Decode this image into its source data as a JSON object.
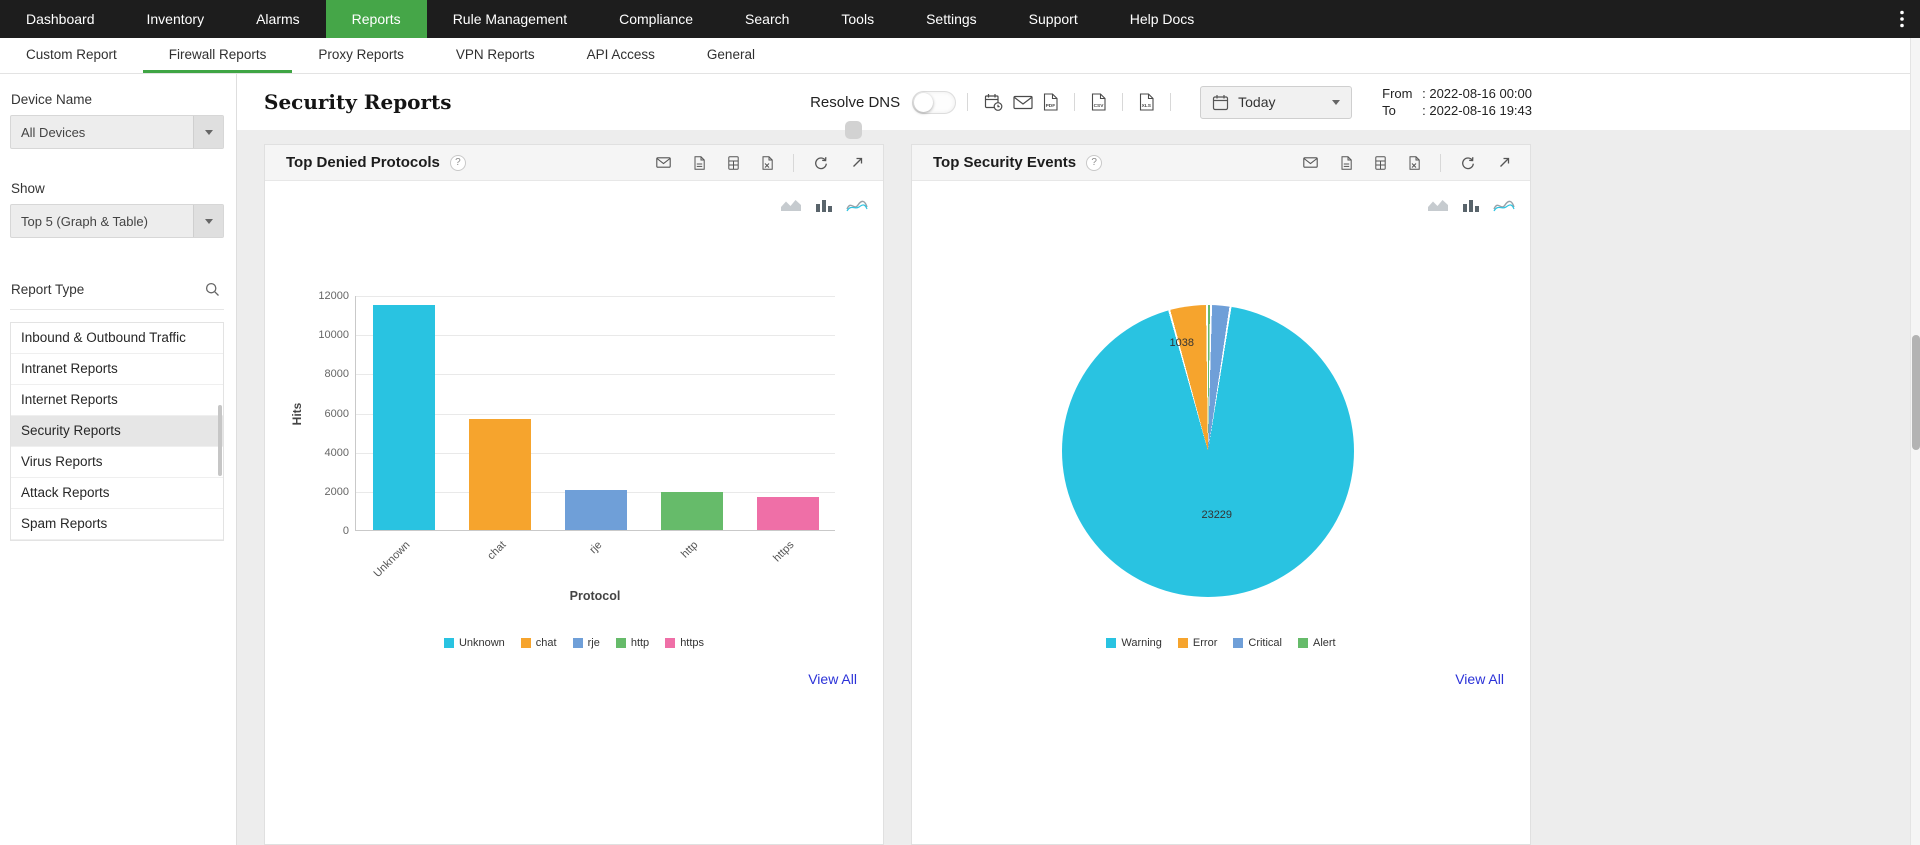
{
  "topnav": {
    "items": [
      "Dashboard",
      "Inventory",
      "Alarms",
      "Reports",
      "Rule Management",
      "Compliance",
      "Search",
      "Tools",
      "Settings",
      "Support",
      "Help Docs"
    ],
    "active_index": 3
  },
  "subnav": {
    "items": [
      "Custom Report",
      "Firewall Reports",
      "Proxy Reports",
      "VPN Reports",
      "API Access",
      "General"
    ],
    "active_index": 1
  },
  "sidebar": {
    "device_label": "Device Name",
    "device_value": "All Devices",
    "show_label": "Show",
    "show_value": "Top 5 (Graph & Table)",
    "report_type_label": "Report Type",
    "report_types": [
      "Inbound & Outbound Traffic",
      "Intranet Reports",
      "Internet Reports",
      "Security Reports",
      "Virus Reports",
      "Attack Reports",
      "Spam Reports"
    ],
    "selected_index": 3
  },
  "header": {
    "title": "Security Reports",
    "resolve_dns": "Resolve DNS",
    "period": "Today",
    "from_label": "From",
    "from_value": ": 2022-08-16 00:00",
    "to_label": "To",
    "to_value": ": 2022-08-16 19:43"
  },
  "panels": [
    {
      "title": "Top Denied Protocols",
      "help": "?",
      "view_all": "View All"
    },
    {
      "title": "Top Security Events",
      "help": "?",
      "view_all": "View All"
    }
  ],
  "icons": {
    "toolbar": [
      "schedule-report",
      "email",
      "pdf-export",
      "csv-export",
      "xls-export"
    ],
    "panel": [
      "email",
      "pdf-export",
      "report-export",
      "xls-export",
      "refresh",
      "pop-out"
    ],
    "chart_switcher": [
      "area-chart",
      "bar-chart",
      "line-chart"
    ]
  },
  "colors": {
    "accent_green": "#45a648",
    "link_blue": "#2b32d8",
    "topnav_bg": "#1d1d1d"
  },
  "chart_data": [
    {
      "type": "bar",
      "title": "Top Denied Protocols",
      "xlabel": "Protocol",
      "ylabel": "Hits",
      "ylim": [
        0,
        12000
      ],
      "ytick_step": 2000,
      "grid": true,
      "legend_position": "bottom",
      "categories": [
        "Unknown",
        "chat",
        "rje",
        "http",
        "https"
      ],
      "values": [
        11500,
        5650,
        2050,
        1950,
        1700
      ],
      "colors": [
        "#29c3e1",
        "#f6a42d",
        "#6f9fd8",
        "#66bb6a",
        "#ef6fa7"
      ]
    },
    {
      "type": "pie",
      "title": "Top Security Events",
      "legend_position": "bottom",
      "slices": [
        {
          "name": "Warning",
          "value": 23229,
          "color": "#29c3e1",
          "label": "23229"
        },
        {
          "name": "Error",
          "value": 1038,
          "color": "#f6a42d",
          "label": "1038"
        },
        {
          "name": "Critical",
          "value": 530,
          "color": "#6f9fd8",
          "label": ""
        },
        {
          "name": "Alert",
          "value": 110,
          "color": "#66bb6a",
          "label": ""
        }
      ],
      "draw_order": [
        3,
        2,
        0,
        1
      ],
      "shown_value_labels": [
        {
          "text": "23229",
          "left": "53%",
          "top": "72%"
        },
        {
          "text": "1038",
          "left": "41%",
          "top": "13%"
        }
      ]
    }
  ]
}
